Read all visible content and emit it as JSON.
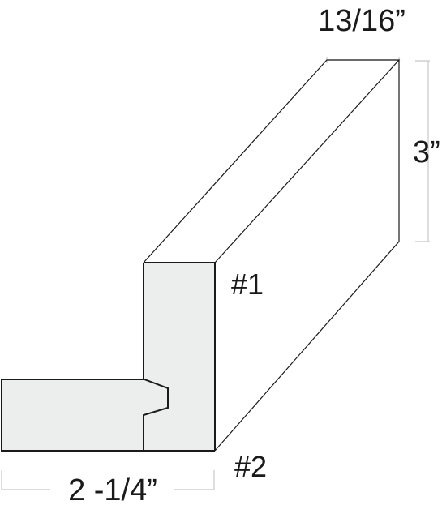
{
  "dimensions": {
    "depth": "13/16”",
    "height": "3”",
    "width": "2 -1/4”"
  },
  "callouts": {
    "face_1": "#1",
    "face_2": "#2"
  },
  "colors": {
    "outline": "#1a1a1a",
    "face_fill": "#eceeed",
    "dimension_line": "#c8c8c8"
  }
}
